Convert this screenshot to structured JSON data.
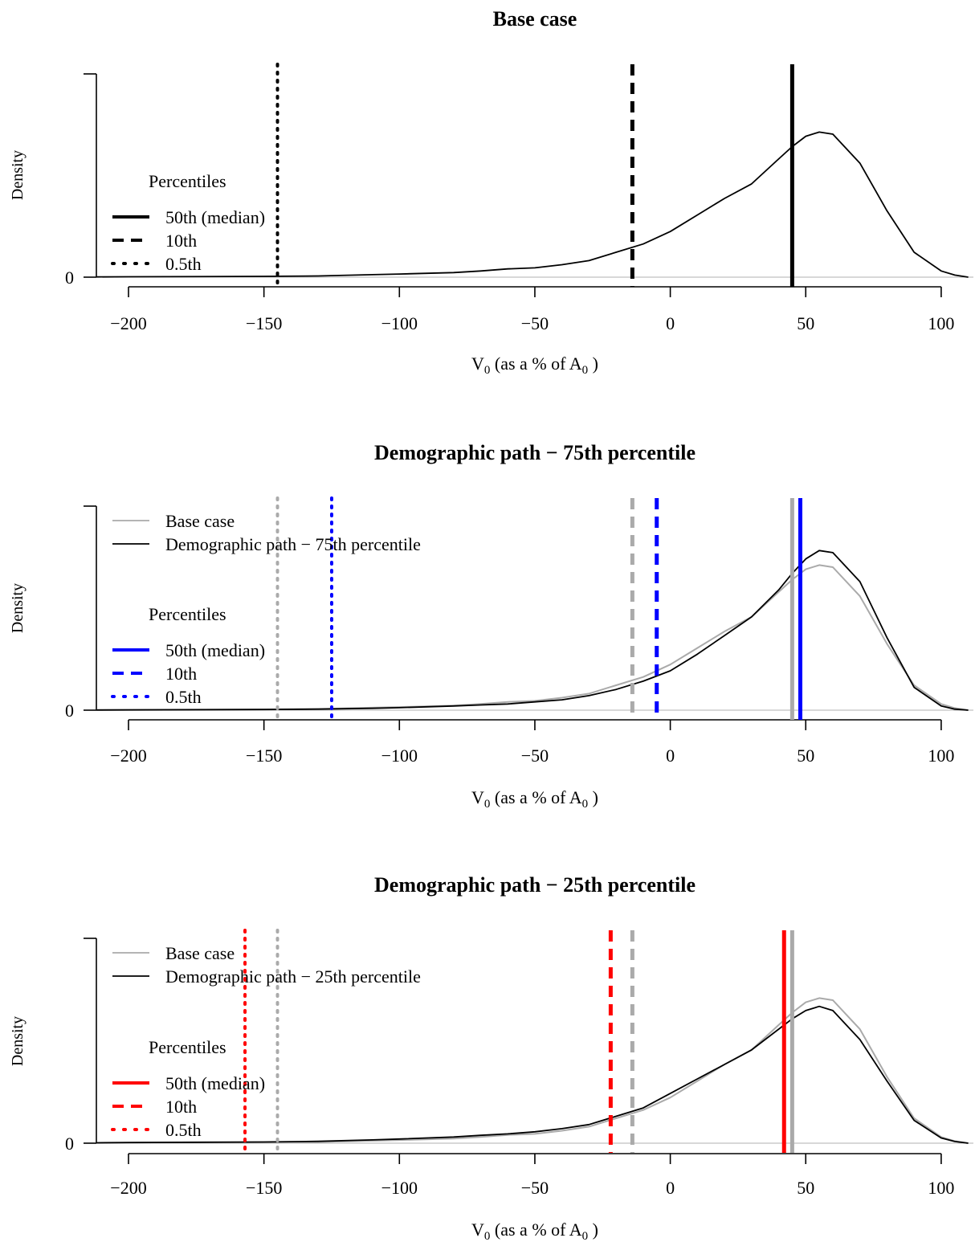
{
  "chart_data": [
    {
      "type": "line",
      "title": "Base case",
      "ylabel": "Density",
      "xlabel": "V0 (as a % of A0 )",
      "xlabel_main": "V",
      "xlabel_sub1": "0",
      "xlabel_mid": " (as a % of A",
      "xlabel_sub2": "0",
      "xlabel_end": " )",
      "xlim": [
        -200,
        100
      ],
      "x_ticks": [
        -200,
        -150,
        -100,
        -50,
        0,
        50,
        100
      ],
      "x_tick_labels": [
        "−200",
        "−150",
        "−100",
        "−50",
        "0",
        "50",
        "100"
      ],
      "y_tick_labels": [
        "0"
      ],
      "ylim": [
        0,
        1
      ],
      "series": [
        {
          "color": "#000000",
          "x": [
            -230,
            -200,
            -150,
            -130,
            -110,
            -100,
            -80,
            -70,
            -60,
            -50,
            -40,
            -30,
            -20,
            -10,
            0,
            10,
            20,
            30,
            40,
            45,
            50,
            55,
            60,
            70,
            80,
            90,
            100,
            105,
            110
          ],
          "y": [
            0,
            0.002,
            0.004,
            0.006,
            0.012,
            0.015,
            0.022,
            0.03,
            0.04,
            0.045,
            0.06,
            0.08,
            0.12,
            0.16,
            0.22,
            0.3,
            0.38,
            0.45,
            0.57,
            0.63,
            0.68,
            0.7,
            0.69,
            0.55,
            0.32,
            0.12,
            0.03,
            0.01,
            0
          ]
        }
      ],
      "percentile_lines": [
        {
          "x": 45,
          "style": "solid",
          "color": "#000000"
        },
        {
          "x": -14,
          "style": "dashed",
          "color": "#000000"
        },
        {
          "x": -145,
          "style": "dotted",
          "color": "#000000"
        }
      ],
      "legends": [
        {
          "title": "Percentiles",
          "entries": [
            {
              "label": "50th (median)",
              "style": "solid",
              "color": "#000000"
            },
            {
              "label": "10th",
              "style": "dashed",
              "color": "#000000"
            },
            {
              "label": "0.5th",
              "style": "dotted",
              "color": "#000000"
            }
          ]
        }
      ]
    },
    {
      "type": "line",
      "title": "Demographic path − 75th percentile",
      "ylabel": "Density",
      "xlabel": "V0 (as a % of A0 )",
      "xlabel_main": "V",
      "xlabel_sub1": "0",
      "xlabel_mid": " (as a % of A",
      "xlabel_sub2": "0",
      "xlabel_end": " )",
      "xlim": [
        -200,
        100
      ],
      "x_ticks": [
        -200,
        -150,
        -100,
        -50,
        0,
        50,
        100
      ],
      "x_tick_labels": [
        "−200",
        "−150",
        "−100",
        "−50",
        "0",
        "50",
        "100"
      ],
      "y_tick_labels": [
        "0"
      ],
      "ylim": [
        0,
        1
      ],
      "series": [
        {
          "name": "Base case",
          "color": "#aaaaaa",
          "x": [
            -230,
            -200,
            -150,
            -130,
            -110,
            -100,
            -80,
            -70,
            -60,
            -50,
            -40,
            -30,
            -20,
            -10,
            0,
            10,
            20,
            30,
            40,
            45,
            50,
            55,
            60,
            70,
            80,
            90,
            100,
            105,
            110
          ],
          "y": [
            0,
            0.002,
            0.004,
            0.006,
            0.012,
            0.015,
            0.022,
            0.03,
            0.04,
            0.045,
            0.06,
            0.08,
            0.12,
            0.16,
            0.22,
            0.3,
            0.38,
            0.45,
            0.57,
            0.63,
            0.68,
            0.7,
            0.69,
            0.55,
            0.32,
            0.12,
            0.03,
            0.01,
            0
          ]
        },
        {
          "name": "Demographic path − 75th percentile",
          "color": "#000000",
          "x": [
            -230,
            -200,
            -150,
            -130,
            -110,
            -100,
            -80,
            -70,
            -60,
            -50,
            -40,
            -30,
            -20,
            -10,
            0,
            10,
            20,
            30,
            40,
            45,
            50,
            55,
            60,
            70,
            80,
            90,
            100,
            105,
            110
          ],
          "y": [
            0,
            0.001,
            0.003,
            0.005,
            0.009,
            0.012,
            0.02,
            0.025,
            0.03,
            0.04,
            0.05,
            0.07,
            0.1,
            0.14,
            0.19,
            0.27,
            0.36,
            0.45,
            0.58,
            0.66,
            0.73,
            0.77,
            0.76,
            0.62,
            0.35,
            0.11,
            0.02,
            0.005,
            0
          ]
        }
      ],
      "percentile_lines": [
        {
          "x": -145,
          "style": "dotted",
          "color": "#aaaaaa"
        },
        {
          "x": -14,
          "style": "dashed",
          "color": "#aaaaaa"
        },
        {
          "x": 45,
          "style": "solid",
          "color": "#aaaaaa"
        },
        {
          "x": 48,
          "style": "solid",
          "color": "#0000ff"
        },
        {
          "x": -5,
          "style": "dashed",
          "color": "#0000ff"
        },
        {
          "x": -125,
          "style": "dotted",
          "color": "#0000ff"
        }
      ],
      "legends": [
        {
          "title": "",
          "entries": [
            {
              "label": "Base case",
              "style": "solid",
              "color": "#aaaaaa"
            },
            {
              "label": "Demographic path − 75th percentile",
              "style": "solid",
              "color": "#000000"
            }
          ]
        },
        {
          "title": "Percentiles",
          "entries": [
            {
              "label": "50th (median)",
              "style": "solid",
              "color": "#0000ff"
            },
            {
              "label": "10th",
              "style": "dashed",
              "color": "#0000ff"
            },
            {
              "label": "0.5th",
              "style": "dotted",
              "color": "#0000ff"
            }
          ]
        }
      ]
    },
    {
      "type": "line",
      "title": "Demographic path − 25th percentile",
      "ylabel": "Density",
      "xlabel": "V0 (as a % of A0 )",
      "xlabel_main": "V",
      "xlabel_sub1": "0",
      "xlabel_mid": " (as a % of A",
      "xlabel_sub2": "0",
      "xlabel_end": " )",
      "xlim": [
        -200,
        100
      ],
      "x_ticks": [
        -200,
        -150,
        -100,
        -50,
        0,
        50,
        100
      ],
      "x_tick_labels": [
        "−200",
        "−150",
        "−100",
        "−50",
        "0",
        "50",
        "100"
      ],
      "y_tick_labels": [
        "0"
      ],
      "ylim": [
        0,
        1
      ],
      "series": [
        {
          "name": "Base case",
          "color": "#aaaaaa",
          "x": [
            -230,
            -200,
            -150,
            -130,
            -110,
            -100,
            -80,
            -70,
            -60,
            -50,
            -40,
            -30,
            -20,
            -10,
            0,
            10,
            20,
            30,
            40,
            45,
            50,
            55,
            60,
            70,
            80,
            90,
            100,
            105,
            110
          ],
          "y": [
            0,
            0.002,
            0.004,
            0.006,
            0.012,
            0.015,
            0.022,
            0.03,
            0.04,
            0.045,
            0.06,
            0.08,
            0.12,
            0.16,
            0.22,
            0.3,
            0.38,
            0.45,
            0.57,
            0.63,
            0.68,
            0.7,
            0.69,
            0.55,
            0.32,
            0.12,
            0.03,
            0.01,
            0
          ]
        },
        {
          "name": "Demographic path − 25th percentile",
          "color": "#000000",
          "x": [
            -230,
            -200,
            -150,
            -130,
            -110,
            -100,
            -80,
            -70,
            -60,
            -50,
            -40,
            -30,
            -20,
            -10,
            0,
            10,
            20,
            30,
            40,
            45,
            50,
            55,
            60,
            70,
            80,
            90,
            100,
            105,
            110
          ],
          "y": [
            0,
            0.003,
            0.006,
            0.009,
            0.016,
            0.02,
            0.03,
            0.038,
            0.045,
            0.055,
            0.07,
            0.09,
            0.13,
            0.17,
            0.24,
            0.31,
            0.38,
            0.45,
            0.55,
            0.6,
            0.64,
            0.66,
            0.64,
            0.5,
            0.3,
            0.11,
            0.025,
            0.008,
            0
          ]
        }
      ],
      "percentile_lines": [
        {
          "x": -145,
          "style": "dotted",
          "color": "#aaaaaa"
        },
        {
          "x": -14,
          "style": "dashed",
          "color": "#aaaaaa"
        },
        {
          "x": 45,
          "style": "solid",
          "color": "#aaaaaa"
        },
        {
          "x": 42,
          "style": "solid",
          "color": "#ff0000"
        },
        {
          "x": -22,
          "style": "dashed",
          "color": "#ff0000"
        },
        {
          "x": -157,
          "style": "dotted",
          "color": "#ff0000"
        }
      ],
      "legends": [
        {
          "title": "",
          "entries": [
            {
              "label": "Base case",
              "style": "solid",
              "color": "#aaaaaa"
            },
            {
              "label": "Demographic path − 25th percentile",
              "style": "solid",
              "color": "#000000"
            }
          ]
        },
        {
          "title": "Percentiles",
          "entries": [
            {
              "label": "50th (median)",
              "style": "solid",
              "color": "#ff0000"
            },
            {
              "label": "10th",
              "style": "dashed",
              "color": "#ff0000"
            },
            {
              "label": "0.5th",
              "style": "dotted",
              "color": "#ff0000"
            }
          ]
        }
      ]
    }
  ]
}
